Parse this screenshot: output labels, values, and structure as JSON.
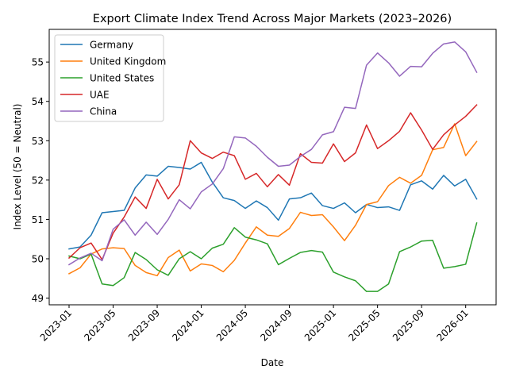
{
  "chart_data": {
    "type": "line",
    "title": "Export Climate Index Trend Across Major Markets (2023–2026)",
    "xlabel": "Date",
    "ylabel": "Index Level (50 = Neutral)",
    "ylim": [
      48.83,
      55.83
    ],
    "yticks": [
      49,
      50,
      51,
      52,
      53,
      54,
      55
    ],
    "xtick_labels": [
      "2023-01",
      "2023-05",
      "2023-09",
      "2024-01",
      "2024-05",
      "2024-09",
      "2025-01",
      "2025-05",
      "2025-09",
      "2026-01"
    ],
    "xtick_month_index": [
      0,
      4,
      8,
      12,
      16,
      20,
      24,
      28,
      32,
      36
    ],
    "grid": false,
    "legend_position": "upper-left",
    "x": [
      "2023-01",
      "2023-02",
      "2023-03",
      "2023-04",
      "2023-05",
      "2023-06",
      "2023-07",
      "2023-08",
      "2023-09",
      "2023-10",
      "2023-11",
      "2023-12",
      "2024-01",
      "2024-02",
      "2024-03",
      "2024-04",
      "2024-05",
      "2024-06",
      "2024-07",
      "2024-08",
      "2024-09",
      "2024-10",
      "2024-11",
      "2024-12",
      "2025-01",
      "2025-02",
      "2025-03",
      "2025-04",
      "2025-05",
      "2025-06",
      "2025-07",
      "2025-08",
      "2025-09",
      "2025-10",
      "2025-11",
      "2025-12",
      "2026-01",
      "2026-02"
    ],
    "series": [
      {
        "name": "Germany",
        "color": "#1f77b4",
        "values": [
          50.25,
          50.3,
          50.6,
          51.17,
          51.2,
          51.23,
          51.8,
          52.13,
          52.1,
          52.35,
          52.32,
          52.28,
          52.45,
          51.95,
          51.55,
          51.48,
          51.28,
          51.47,
          51.3,
          50.98,
          51.52,
          51.55,
          51.67,
          51.35,
          51.28,
          51.42,
          51.17,
          51.38,
          51.3,
          51.32,
          51.23,
          51.88,
          51.98,
          51.77,
          52.12,
          51.85,
          52.02,
          51.52
        ]
      },
      {
        "name": "United Kingdom",
        "color": "#ff7f0e",
        "values": [
          49.62,
          49.77,
          50.12,
          50.25,
          50.28,
          50.26,
          49.83,
          49.65,
          49.57,
          50.03,
          50.22,
          49.69,
          49.87,
          49.83,
          49.67,
          49.96,
          50.4,
          50.81,
          50.6,
          50.57,
          50.77,
          51.18,
          51.1,
          51.12,
          50.81,
          50.46,
          50.85,
          51.38,
          51.45,
          51.86,
          52.07,
          51.92,
          52.12,
          52.77,
          52.83,
          53.43,
          52.62,
          52.98
        ]
      },
      {
        "name": "United States",
        "color": "#2ca02c",
        "values": [
          50.07,
          50.0,
          50.12,
          49.36,
          49.32,
          49.52,
          50.16,
          49.98,
          49.72,
          49.58,
          50.0,
          50.18,
          50.0,
          50.27,
          50.37,
          50.79,
          50.55,
          50.48,
          50.38,
          49.85,
          50.01,
          50.16,
          50.21,
          50.17,
          49.66,
          49.54,
          49.44,
          49.17,
          49.17,
          49.36,
          50.18,
          50.3,
          50.45,
          50.47,
          49.76,
          49.8,
          49.86,
          50.91
        ]
      },
      {
        "name": "UAE",
        "color": "#d62728",
        "values": [
          50.02,
          50.28,
          50.4,
          49.98,
          50.65,
          51.06,
          51.57,
          51.28,
          52.02,
          51.52,
          51.88,
          53.0,
          52.69,
          52.55,
          52.71,
          52.62,
          52.02,
          52.17,
          51.83,
          52.14,
          51.87,
          52.67,
          52.45,
          52.43,
          52.92,
          52.47,
          52.69,
          53.4,
          52.8,
          53.0,
          53.24,
          53.71,
          53.27,
          52.78,
          53.15,
          53.4,
          53.62,
          53.91
        ]
      },
      {
        "name": "China",
        "color": "#9467bd",
        "values": [
          49.85,
          50.02,
          50.14,
          49.95,
          50.75,
          50.99,
          50.6,
          50.93,
          50.62,
          51.0,
          51.5,
          51.27,
          51.7,
          51.9,
          52.29,
          53.1,
          53.07,
          52.86,
          52.58,
          52.35,
          52.38,
          52.6,
          52.78,
          53.15,
          53.23,
          53.85,
          53.82,
          54.92,
          55.23,
          54.98,
          54.64,
          54.89,
          54.88,
          55.22,
          55.46,
          55.51,
          55.26,
          54.74
        ]
      }
    ]
  }
}
